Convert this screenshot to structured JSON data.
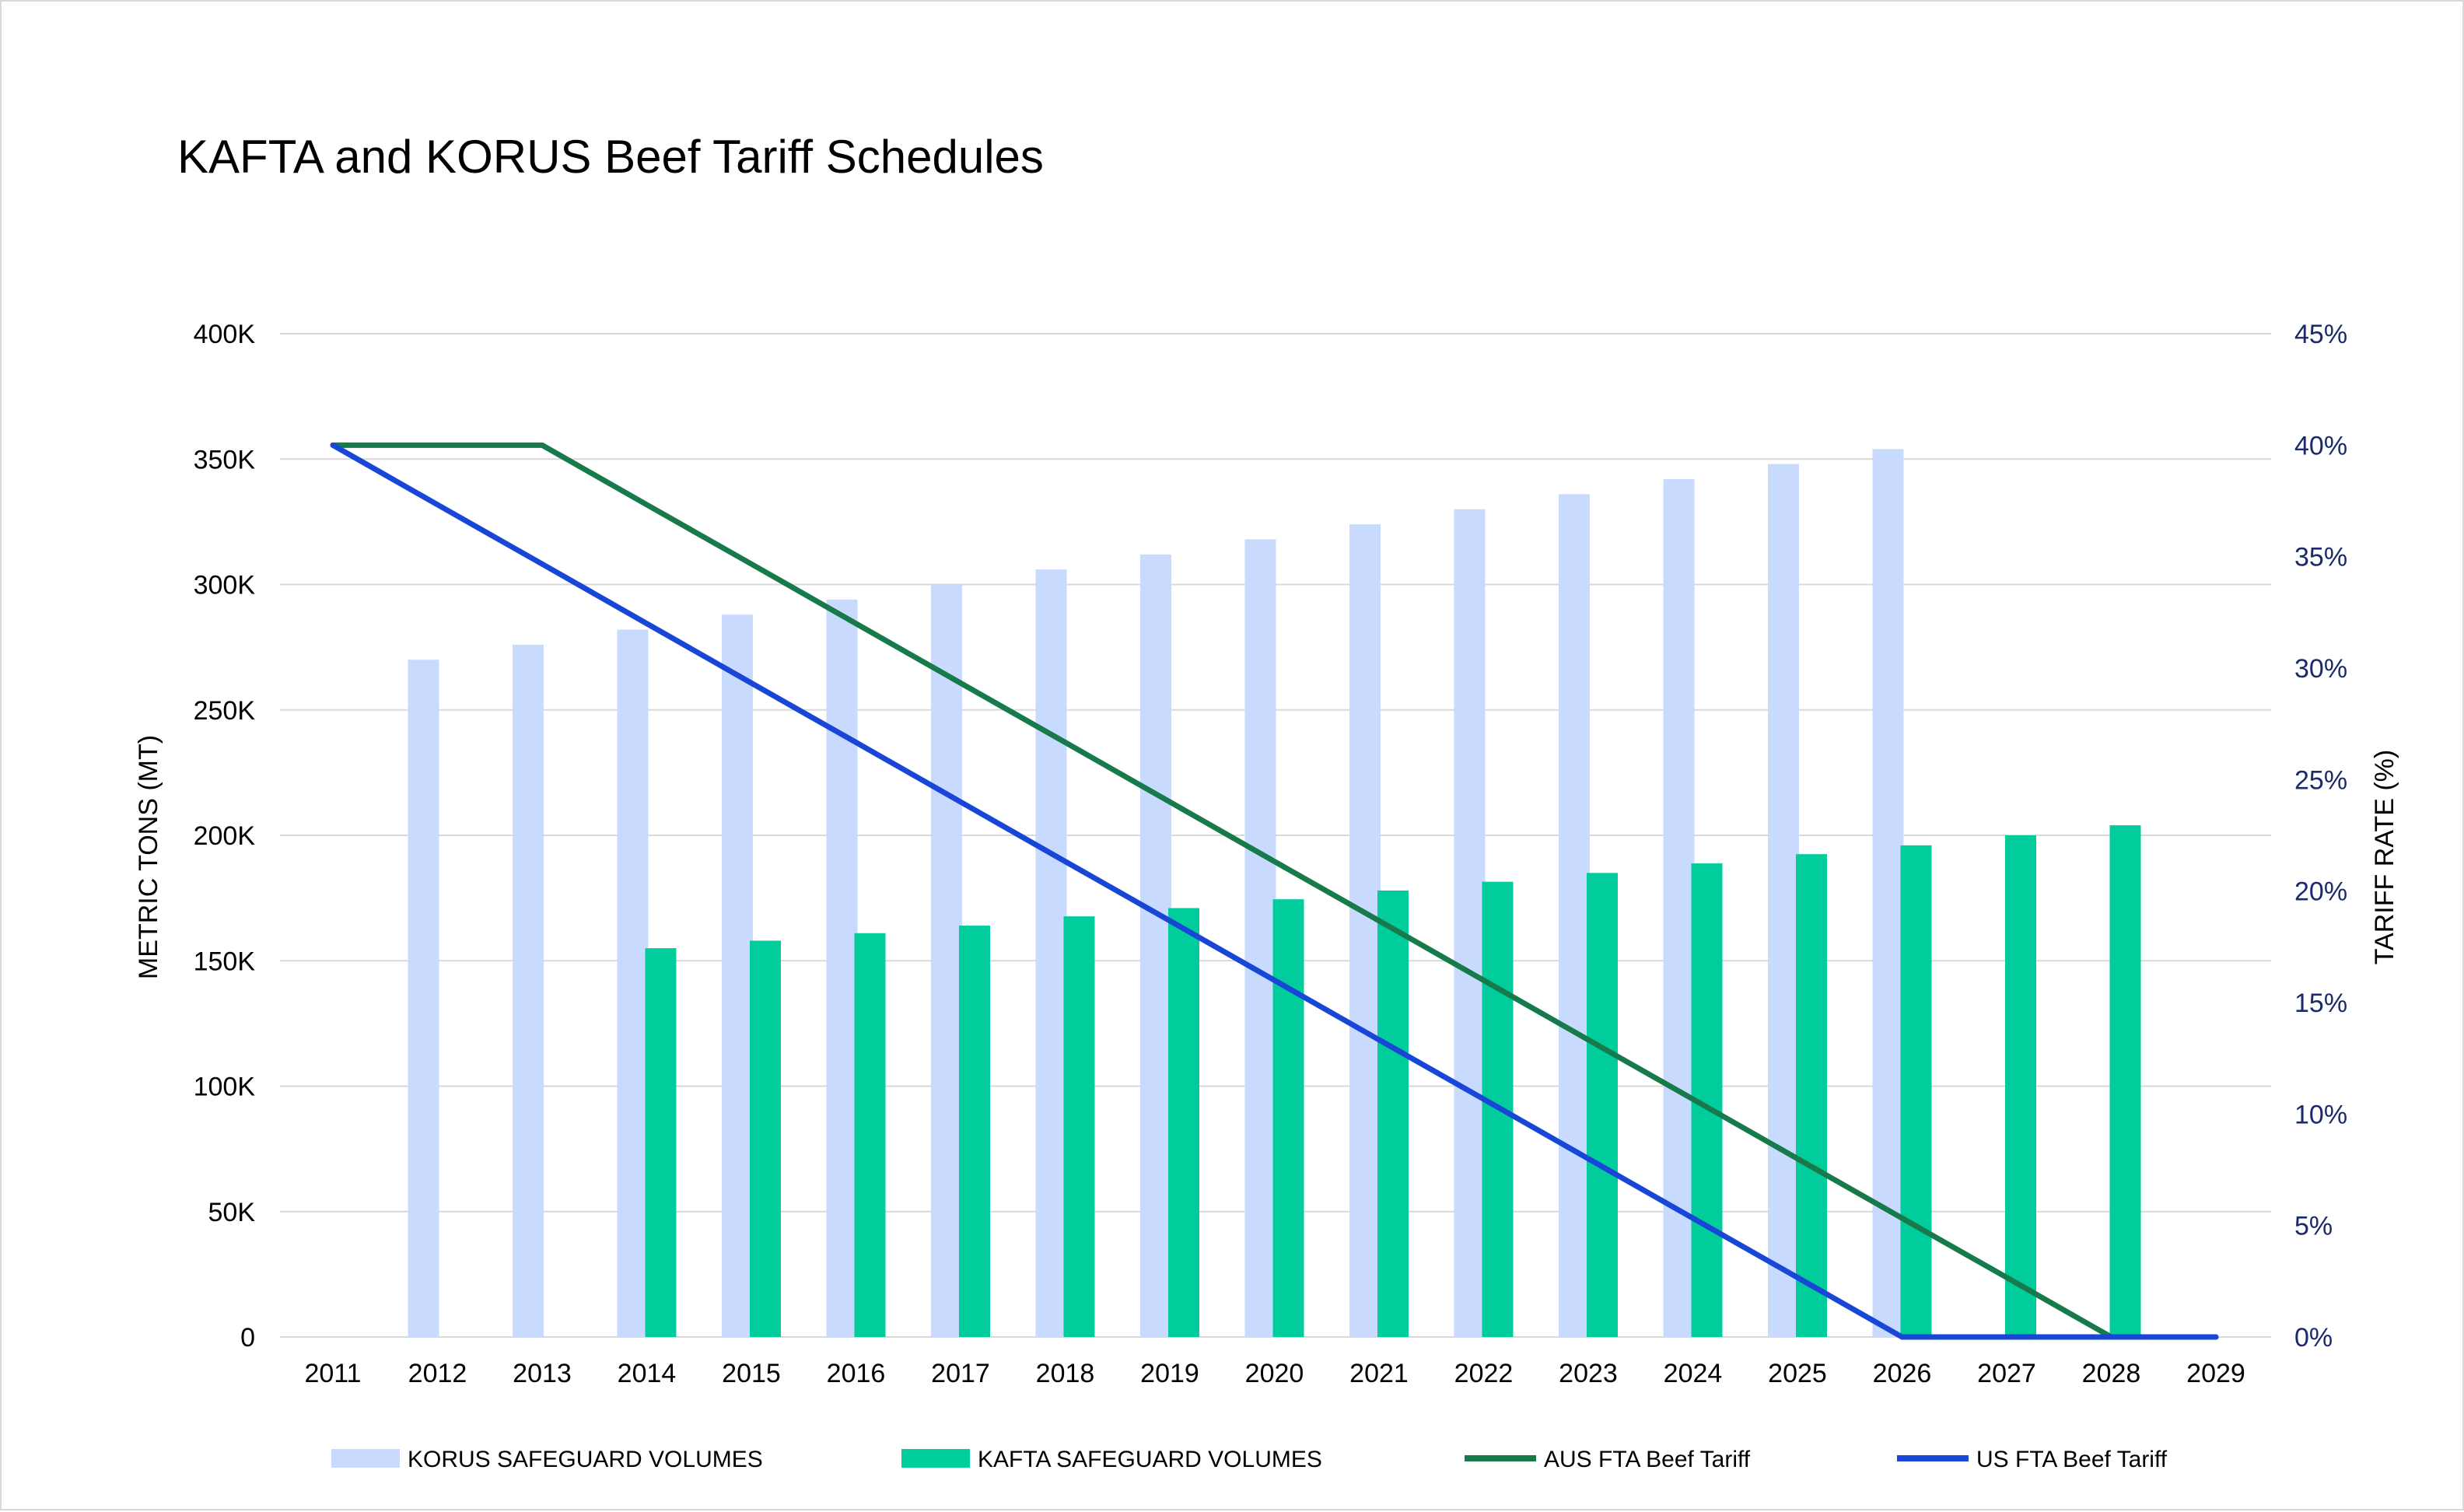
{
  "chart_data": {
    "type": "bar",
    "title": "KAFTA and KORUS Beef Tariff Schedules",
    "xlabel": "",
    "ylabel": "METRIC TONS (MT)",
    "y2label": "TARIFF RATE (%)",
    "categories": [
      "2011",
      "2012",
      "2013",
      "2014",
      "2015",
      "2016",
      "2017",
      "2018",
      "2019",
      "2020",
      "2021",
      "2022",
      "2023",
      "2024",
      "2025",
      "2026",
      "2027",
      "2028",
      "2029"
    ],
    "ylim": [
      0,
      400000
    ],
    "y2lim": [
      0,
      45
    ],
    "y_ticks": [
      "0",
      "50K",
      "100K",
      "150K",
      "200K",
      "250K",
      "300K",
      "350K",
      "400K"
    ],
    "y2_ticks": [
      "0%",
      "5%",
      "10%",
      "15%",
      "20%",
      "25%",
      "30%",
      "35%",
      "40%",
      "45%"
    ],
    "grid": true,
    "legend_position": "bottom",
    "bar_series": [
      {
        "name": "KORUS SAFEGUARD VOLUMES",
        "color": "#c9daff",
        "values": [
          null,
          270000,
          276000,
          282000,
          288000,
          294000,
          300000,
          306000,
          312000,
          318000,
          324000,
          330000,
          336000,
          342000,
          348000,
          354000,
          null,
          null,
          null
        ]
      },
      {
        "name": "KAFTA SAFEGUARD VOLUMES",
        "color": "#00cc9c",
        "values": [
          null,
          null,
          null,
          155000,
          158000,
          161000,
          164000,
          167700,
          171000,
          174500,
          178000,
          181500,
          185000,
          188800,
          192500,
          196000,
          200000,
          204000,
          null
        ]
      }
    ],
    "line_series": [
      {
        "name": "AUS FTA Beef Tariff",
        "color": "#177a4a",
        "axis": "right",
        "values": [
          40,
          40,
          40,
          37.33,
          34.67,
          32,
          29.33,
          26.67,
          24,
          21.33,
          18.67,
          16,
          13.33,
          10.67,
          8,
          5.33,
          2.67,
          0,
          0
        ]
      },
      {
        "name": "US FTA Beef Tariff",
        "color": "#1846d6",
        "axis": "right",
        "values": [
          40,
          37.33,
          34.67,
          32,
          29.33,
          26.67,
          24,
          21.33,
          18.67,
          16,
          13.33,
          10.67,
          8,
          5.33,
          2.67,
          0,
          0,
          0,
          0
        ]
      }
    ]
  }
}
